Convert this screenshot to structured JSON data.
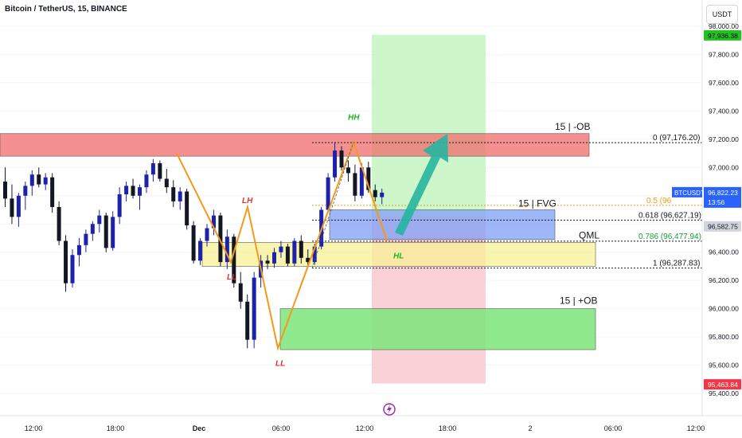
{
  "header": {
    "title": "Bitcoin / TetherUS, 15, BINANCE",
    "currency_label": "USDT"
  },
  "colors": {
    "up": "#1e22aa",
    "down": "#131722",
    "ob_bearish": "#f26b6b",
    "ob_bullish": "#7ee57a",
    "fvg": "#7e9ff5",
    "qml_zone": "#f7f095",
    "target_zone": "#c8f5c4",
    "stop_zone": "#f8c9d0",
    "zigzag": "#f29a1a",
    "arrow": "#26b5a0",
    "price_tag_green": "#21c321",
    "price_tag_red": "#f23645",
    "price_tag_blue": "#2962ff"
  },
  "chart_data": {
    "type": "candlestick",
    "symbol": "BTCUSDT",
    "ylim": [
      95400,
      98000
    ],
    "x_ticks": [
      "12:00",
      "18:00",
      "Dec",
      "06:00",
      "12:00",
      "18:00",
      "2",
      "06:00",
      "12:00"
    ],
    "y_ticks": [
      "98,000.00",
      "97,800.00",
      "97,600.00",
      "97,400.00",
      "97,200.00",
      "97,000.00",
      "96,800.00",
      "96,600.00",
      "96,400.00",
      "96,200.00",
      "96,000.00",
      "95,800.00",
      "95,600.00",
      "95,400.00"
    ],
    "y_tick_values": [
      98000,
      97800,
      97600,
      97400,
      97200,
      97000,
      96800,
      96600,
      96400,
      96200,
      96000,
      95800,
      95600,
      95400
    ],
    "candles": [
      [
        96900,
        97000,
        96720,
        96780
      ],
      [
        96780,
        96880,
        96600,
        96650
      ],
      [
        96650,
        96820,
        96580,
        96800
      ],
      [
        96800,
        96900,
        96700,
        96870
      ],
      [
        96870,
        96980,
        96800,
        96950
      ],
      [
        96950,
        97000,
        96860,
        96880
      ],
      [
        96880,
        96960,
        96840,
        96930
      ],
      [
        96930,
        96960,
        96680,
        96720
      ],
      [
        96720,
        96760,
        96450,
        96480
      ],
      [
        96480,
        96520,
        96120,
        96180
      ],
      [
        96180,
        96420,
        96150,
        96380
      ],
      [
        96380,
        96500,
        96300,
        96450
      ],
      [
        96450,
        96560,
        96400,
        96530
      ],
      [
        96530,
        96620,
        96480,
        96600
      ],
      [
        96600,
        96700,
        96540,
        96660
      ],
      [
        96660,
        96680,
        96400,
        96430
      ],
      [
        96430,
        96690,
        96410,
        96650
      ],
      [
        96650,
        96860,
        96600,
        96810
      ],
      [
        96810,
        96900,
        96760,
        96870
      ],
      [
        96870,
        96920,
        96780,
        96800
      ],
      [
        96800,
        96880,
        96700,
        96860
      ],
      [
        96860,
        96980,
        96820,
        96950
      ],
      [
        96950,
        97060,
        96900,
        97030
      ],
      [
        97030,
        97050,
        96900,
        96920
      ],
      [
        96920,
        96990,
        96820,
        96860
      ],
      [
        96860,
        96910,
        96720,
        96760
      ],
      [
        96760,
        96860,
        96700,
        96830
      ],
      [
        96830,
        96850,
        96560,
        96590
      ],
      [
        96590,
        96620,
        96320,
        96340
      ],
      [
        96340,
        96500,
        96310,
        96480
      ],
      [
        96480,
        96600,
        96440,
        96570
      ],
      [
        96570,
        96700,
        96520,
        96660
      ],
      [
        96660,
        96680,
        96300,
        96330
      ],
      [
        96330,
        96560,
        96280,
        96510
      ],
      [
        96510,
        96530,
        96150,
        96180
      ],
      [
        96180,
        96260,
        96000,
        96050
      ],
      [
        96050,
        96100,
        95720,
        95780
      ],
      [
        95780,
        96260,
        95720,
        96220
      ],
      [
        96220,
        96380,
        96150,
        96340
      ],
      [
        96340,
        96380,
        96280,
        96320
      ],
      [
        96320,
        96430,
        96290,
        96400
      ],
      [
        96400,
        96480,
        96360,
        96440
      ],
      [
        96440,
        96460,
        96300,
        96320
      ],
      [
        96320,
        96500,
        96300,
        96480
      ],
      [
        96480,
        96520,
        96320,
        96360
      ],
      [
        96360,
        96420,
        96300,
        96330
      ],
      [
        96330,
        96460,
        96310,
        96440
      ],
      [
        96440,
        96720,
        96420,
        96700
      ],
      [
        96700,
        96960,
        96680,
        96930
      ],
      [
        96930,
        97180,
        96900,
        97120
      ],
      [
        97120,
        97150,
        96980,
        97000
      ],
      [
        97000,
        97050,
        96900,
        96960
      ],
      [
        96960,
        97020,
        96760,
        96800
      ],
      [
        96800,
        97030,
        96780,
        97000
      ],
      [
        97000,
        97040,
        96820,
        96840
      ],
      [
        96840,
        96880,
        96760,
        96790
      ],
      [
        96790,
        96850,
        96740,
        96822
      ]
    ],
    "zones": [
      {
        "label": "15 | -OB",
        "top": 97240,
        "bottom": 97080
      },
      {
        "label": "15 | FVG",
        "top": 96700,
        "bottom": 96490
      },
      {
        "label": "15 | +OB",
        "top": 96000,
        "bottom": 95710
      },
      {
        "label": "QML",
        "top": 96470,
        "bottom": 96300
      },
      {
        "label": "target",
        "top": 97940,
        "bottom": 96660
      },
      {
        "label": "stop",
        "top": 96660,
        "bottom": 95470
      }
    ],
    "fib_levels": [
      {
        "label": "0 (97,176.20)",
        "value": 97176.2
      },
      {
        "label": "0.5 (96",
        "value": 96731.88
      },
      {
        "label": "0.618 (96,627.19)",
        "value": 96627.19
      },
      {
        "label": "0.786 (96,477.94)",
        "value": 96477.94
      },
      {
        "label": "1 (96,287.83)",
        "value": 96287.83
      }
    ],
    "swing_labels": [
      {
        "text": "HH",
        "value": 97180
      },
      {
        "text": "LH",
        "value": 96720
      },
      {
        "text": "LL",
        "value": 96320
      },
      {
        "text": "LL",
        "value": 95720
      },
      {
        "text": "HL",
        "value": 96480
      }
    ],
    "price_tags": {
      "target_price": "97,936.38",
      "symbol_label": "BTCUSDT",
      "current_price": "96,822.23",
      "countdown": "13:56",
      "entry_price": "96,582.75",
      "stop_price": "95,463.84"
    },
    "grid": false,
    "marker_icon": "lightning-icon"
  }
}
